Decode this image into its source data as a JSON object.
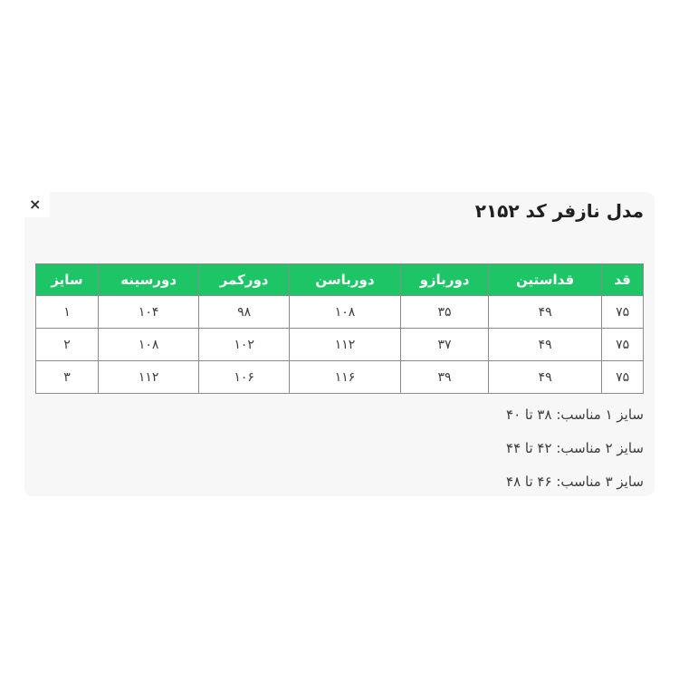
{
  "modal": {
    "title": "مدل نازفر کد ۲۱۵۲",
    "close_glyph": "×"
  },
  "size_table": {
    "headers": [
      "قد",
      "قداستین",
      "دوربازو",
      "دورباسن",
      "دورکمر",
      "دورسینه",
      "سایز"
    ],
    "rows": [
      [
        "۷۵",
        "۴۹",
        "۳۵",
        "۱۰۸",
        "۹۸",
        "۱۰۴",
        "۱"
      ],
      [
        "۷۵",
        "۴۹",
        "۳۷",
        "۱۱۲",
        "۱۰۲",
        "۱۰۸",
        "۲"
      ],
      [
        "۷۵",
        "۴۹",
        "۳۹",
        "۱۱۶",
        "۱۰۶",
        "۱۱۲",
        "۳"
      ]
    ]
  },
  "size_notes": [
    "سایز ۱ مناسب: ۳۸ تا ۴۰",
    "سایز ۲ مناسب: ۴۲ تا ۴۴",
    "سایز ۳ مناسب: ۴۶ تا ۴۸"
  ],
  "colors": {
    "header_green": "#1ec566",
    "card_background": "#f7f7f8",
    "table_border": "#8b8b8b",
    "header_text": "#ffffff",
    "cell_text": "#3d3d3d",
    "title_text": "#1f1f1f"
  }
}
